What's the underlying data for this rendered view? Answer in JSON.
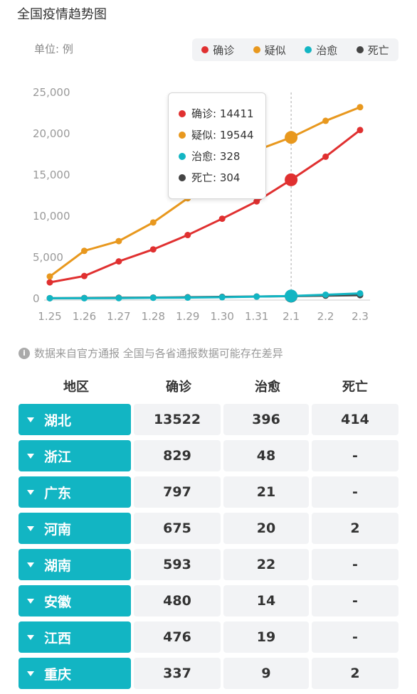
{
  "title": "全国疫情趋势图",
  "unit": "单位: 例",
  "legend": [
    {
      "name": "确诊",
      "color": "#e03030"
    },
    {
      "name": "疑似",
      "color": "#e8981e"
    },
    {
      "name": "治愈",
      "color": "#12b5c3"
    },
    {
      "name": "死亡",
      "color": "#444444"
    }
  ],
  "tooltip": [
    {
      "name": "确诊",
      "value": "14411",
      "color": "#e03030"
    },
    {
      "name": "疑似",
      "value": "19544",
      "color": "#e8981e"
    },
    {
      "name": "治愈",
      "value": "328",
      "color": "#12b5c3"
    },
    {
      "name": "死亡",
      "value": "304",
      "color": "#444444"
    }
  ],
  "chart_data": {
    "type": "line",
    "title": "",
    "xlabel": "",
    "ylabel": "",
    "ylim": [
      0,
      25000
    ],
    "y_ticks": [
      "0",
      "5,000",
      "10,000",
      "15,000",
      "20,000",
      "25,000"
    ],
    "categories": [
      "1.25",
      "1.26",
      "1.27",
      "1.28",
      "1.29",
      "1.30",
      "1.31",
      "2.1",
      "2.2",
      "2.3"
    ],
    "highlight_index": 7,
    "series": [
      {
        "name": "确诊",
        "color": "#e03030",
        "values": [
          1975,
          2744,
          4515,
          5974,
          7711,
          9692,
          11791,
          14411,
          17205,
          20438
        ]
      },
      {
        "name": "疑似",
        "color": "#e8981e",
        "values": [
          2684,
          5794,
          6973,
          9239,
          12167,
          15238,
          17988,
          19544,
          21558,
          23214
        ]
      },
      {
        "name": "治愈",
        "color": "#12b5c3",
        "values": [
          49,
          51,
          60,
          103,
          124,
          171,
          243,
          328,
          475,
          632
        ]
      },
      {
        "name": "死亡",
        "color": "#444444",
        "values": [
          56,
          80,
          106,
          132,
          170,
          213,
          259,
          304,
          361,
          425
        ]
      }
    ]
  },
  "note": "数据来自官方通报 全国与各省通报数据可能存在差异",
  "table": {
    "headers": [
      "地区",
      "确诊",
      "治愈",
      "死亡"
    ],
    "rows": [
      {
        "region": "湖北",
        "confirmed": "13522",
        "cured": "396",
        "dead": "414"
      },
      {
        "region": "浙江",
        "confirmed": "829",
        "cured": "48",
        "dead": "-"
      },
      {
        "region": "广东",
        "confirmed": "797",
        "cured": "21",
        "dead": "-"
      },
      {
        "region": "河南",
        "confirmed": "675",
        "cured": "20",
        "dead": "2"
      },
      {
        "region": "湖南",
        "confirmed": "593",
        "cured": "22",
        "dead": "-"
      },
      {
        "region": "安徽",
        "confirmed": "480",
        "cured": "14",
        "dead": "-"
      },
      {
        "region": "江西",
        "confirmed": "476",
        "cured": "19",
        "dead": "-"
      },
      {
        "region": "重庆",
        "confirmed": "337",
        "cured": "9",
        "dead": "2"
      }
    ]
  }
}
